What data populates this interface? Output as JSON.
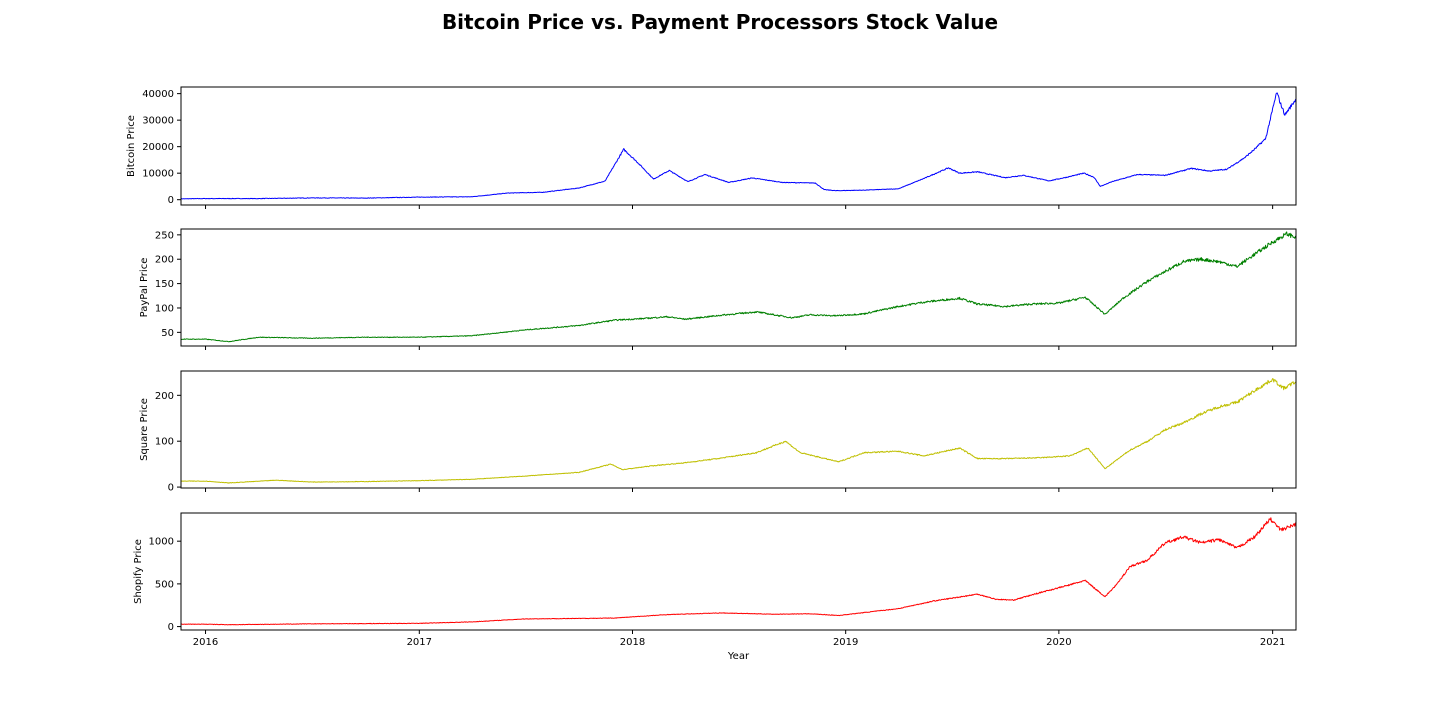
{
  "chart_data": {
    "type": "line",
    "title": "Bitcoin Price vs. Payment Processors Stock Value",
    "xlabel": "Year",
    "x_ticks": [
      "2016",
      "2017",
      "2018",
      "2019",
      "2020",
      "2021"
    ],
    "xlim": [
      "2015-11-20",
      "2021-02-10"
    ],
    "grid": false,
    "panels": [
      {
        "ylabel": "Bitcoin Price",
        "color": "#0000ff",
        "ylim": [
          -2000,
          42500
        ],
        "yticks": [
          0,
          10000,
          20000,
          30000,
          40000
        ],
        "x": [
          "2015-11-20",
          "2016-01-01",
          "2016-04-01",
          "2016-07-01",
          "2016-10-01",
          "2017-01-01",
          "2017-04-01",
          "2017-06-01",
          "2017-08-01",
          "2017-10-01",
          "2017-11-15",
          "2017-12-17",
          "2018-01-10",
          "2018-02-06",
          "2018-03-05",
          "2018-04-06",
          "2018-05-05",
          "2018-06-15",
          "2018-07-25",
          "2018-09-15",
          "2018-11-10",
          "2018-11-25",
          "2018-12-15",
          "2019-02-01",
          "2019-04-01",
          "2019-05-15",
          "2019-06-26",
          "2019-07-15",
          "2019-08-15",
          "2019-10-01",
          "2019-11-01",
          "2019-12-15",
          "2020-01-15",
          "2020-02-13",
          "2020-03-01",
          "2020-03-12",
          "2020-04-01",
          "2020-05-15",
          "2020-07-01",
          "2020-08-15",
          "2020-09-15",
          "2020-10-15",
          "2020-11-15",
          "2020-12-01",
          "2020-12-20",
          "2021-01-08",
          "2021-01-15",
          "2021-01-22",
          "2021-02-10"
        ],
        "y": [
          330,
          430,
          420,
          680,
          610,
          970,
          1100,
          2500,
          2800,
          4400,
          7000,
          19000,
          14000,
          7800,
          11000,
          6800,
          9500,
          6500,
          8200,
          6500,
          6300,
          3800,
          3400,
          3600,
          4100,
          8000,
          12000,
          10000,
          10500,
          8300,
          9200,
          7100,
          8500,
          10000,
          8500,
          5000,
          6800,
          9500,
          9200,
          11800,
          10800,
          11500,
          16000,
          19000,
          23000,
          40500,
          36000,
          32000,
          38000
        ]
      },
      {
        "ylabel": "PayPal Price",
        "color": "#008000",
        "ylim": [
          22,
          262
        ],
        "yticks": [
          50,
          100,
          150,
          200,
          250
        ],
        "x": [
          "2015-11-20",
          "2016-01-01",
          "2016-02-10",
          "2016-04-01",
          "2016-07-01",
          "2016-10-01",
          "2017-01-01",
          "2017-04-01",
          "2017-07-01",
          "2017-10-01",
          "2017-12-01",
          "2018-01-15",
          "2018-03-01",
          "2018-04-01",
          "2018-06-01",
          "2018-08-01",
          "2018-10-01",
          "2018-11-01",
          "2018-12-15",
          "2019-02-01",
          "2019-04-01",
          "2019-05-15",
          "2019-07-15",
          "2019-08-15",
          "2019-10-01",
          "2019-11-15",
          "2020-01-01",
          "2020-02-15",
          "2020-03-20",
          "2020-04-20",
          "2020-06-01",
          "2020-07-01",
          "2020-08-01",
          "2020-09-01",
          "2020-10-01",
          "2020-11-01",
          "2020-12-01",
          "2021-01-01",
          "2021-01-25",
          "2021-02-10"
        ],
        "y": [
          36,
          36,
          31,
          40,
          38,
          40,
          40,
          43,
          55,
          64,
          75,
          78,
          82,
          77,
          85,
          92,
          80,
          86,
          84,
          88,
          103,
          112,
          120,
          108,
          103,
          108,
          110,
          122,
          87,
          120,
          155,
          175,
          195,
          200,
          195,
          185,
          210,
          235,
          252,
          245
        ]
      },
      {
        "ylabel": "Square Price",
        "color": "#bfbf00",
        "ylim": [
          -2,
          253
        ],
        "yticks": [
          0,
          100,
          200
        ],
        "x": [
          "2015-11-20",
          "2016-01-01",
          "2016-02-10",
          "2016-05-01",
          "2016-07-01",
          "2016-10-01",
          "2017-01-01",
          "2017-04-01",
          "2017-07-01",
          "2017-10-01",
          "2017-11-25",
          "2017-12-15",
          "2018-02-01",
          "2018-04-01",
          "2018-06-01",
          "2018-08-01",
          "2018-09-20",
          "2018-10-15",
          "2018-12-20",
          "2019-02-01",
          "2019-04-01",
          "2019-05-15",
          "2019-07-15",
          "2019-08-15",
          "2019-10-01",
          "2019-12-01",
          "2020-01-20",
          "2020-02-20",
          "2020-03-20",
          "2020-05-01",
          "2020-06-01",
          "2020-07-01",
          "2020-08-01",
          "2020-09-01",
          "2020-10-01",
          "2020-11-01",
          "2020-12-01",
          "2021-01-01",
          "2021-01-20",
          "2021-02-10"
        ],
        "y": [
          13,
          13,
          9,
          15,
          11,
          12,
          14,
          17,
          24,
          32,
          50,
          38,
          46,
          53,
          63,
          75,
          100,
          75,
          55,
          75,
          78,
          68,
          85,
          62,
          62,
          64,
          68,
          85,
          40,
          80,
          100,
          125,
          140,
          160,
          175,
          185,
          210,
          235,
          215,
          230
        ]
      },
      {
        "ylabel": "Shopify Price",
        "color": "#ff0000",
        "ylim": [
          -40,
          1330
        ],
        "yticks": [
          0,
          500,
          1000
        ],
        "x": [
          "2015-11-20",
          "2016-01-01",
          "2016-02-10",
          "2016-07-01",
          "2017-01-01",
          "2017-04-01",
          "2017-07-01",
          "2017-10-01",
          "2017-12-01",
          "2018-03-01",
          "2018-06-01",
          "2018-09-01",
          "2018-11-01",
          "2018-12-20",
          "2019-02-15",
          "2019-04-01",
          "2019-06-01",
          "2019-08-15",
          "2019-09-15",
          "2019-10-15",
          "2019-12-01",
          "2020-01-15",
          "2020-02-15",
          "2020-03-20",
          "2020-04-10",
          "2020-05-01",
          "2020-06-01",
          "2020-07-01",
          "2020-08-01",
          "2020-09-01",
          "2020-10-01",
          "2020-11-01",
          "2020-12-01",
          "2020-12-28",
          "2021-01-15",
          "2021-02-10"
        ],
        "y": [
          28,
          28,
          22,
          32,
          38,
          55,
          90,
          95,
          100,
          140,
          160,
          145,
          150,
          130,
          175,
          210,
          300,
          380,
          320,
          310,
          400,
          480,
          540,
          350,
          500,
          700,
          780,
          980,
          1050,
          980,
          1020,
          920,
          1050,
          1260,
          1130,
          1200
        ]
      }
    ]
  }
}
